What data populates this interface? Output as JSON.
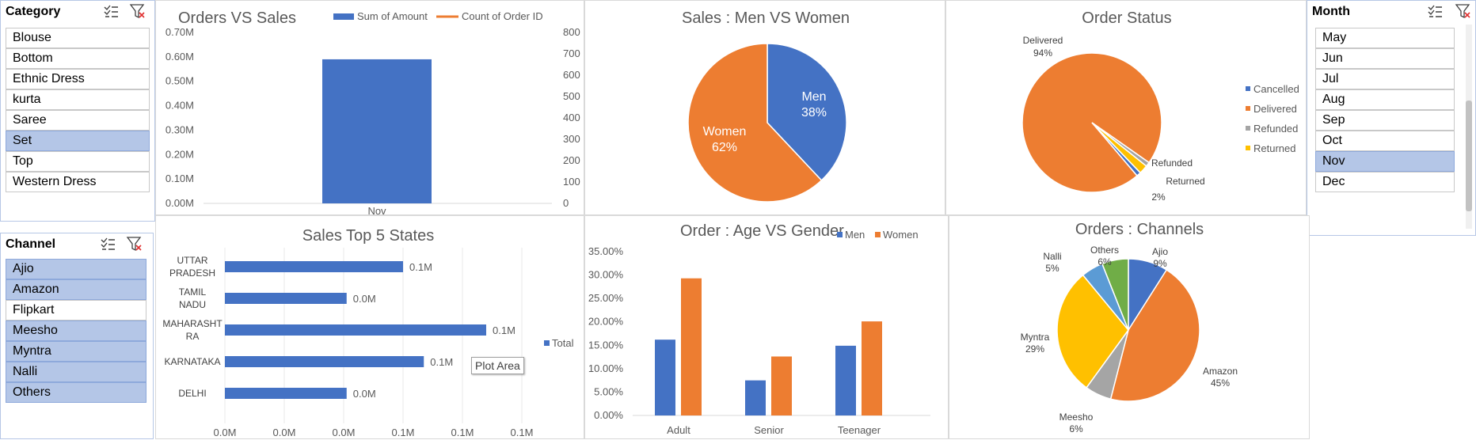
{
  "colors": {
    "blue": "#4472c4",
    "orange": "#ed7d31",
    "gray": "#a5a5a5",
    "yellow": "#ffc000",
    "lightblue": "#5b9bd5",
    "green": "#70ad47",
    "selected": "#b4c6e7"
  },
  "slicers": {
    "category": {
      "title": "Category",
      "items": [
        {
          "label": "Blouse",
          "selected": false
        },
        {
          "label": "Bottom",
          "selected": false
        },
        {
          "label": "Ethnic Dress",
          "selected": false
        },
        {
          "label": "kurta",
          "selected": false
        },
        {
          "label": "Saree",
          "selected": false
        },
        {
          "label": "Set",
          "selected": true
        },
        {
          "label": "Top",
          "selected": false
        },
        {
          "label": "Western Dress",
          "selected": false
        }
      ]
    },
    "channel": {
      "title": "Channel",
      "items": [
        {
          "label": "Ajio",
          "selected": true
        },
        {
          "label": "Amazon",
          "selected": true
        },
        {
          "label": "Flipkart",
          "selected": false
        },
        {
          "label": "Meesho",
          "selected": true
        },
        {
          "label": "Myntra",
          "selected": true
        },
        {
          "label": "Nalli",
          "selected": true
        },
        {
          "label": "Others",
          "selected": true
        }
      ]
    },
    "month": {
      "title": "Month",
      "items": [
        {
          "label": "May",
          "selected": false
        },
        {
          "label": "Jun",
          "selected": false
        },
        {
          "label": "Jul",
          "selected": false
        },
        {
          "label": "Aug",
          "selected": false
        },
        {
          "label": "Sep",
          "selected": false
        },
        {
          "label": "Oct",
          "selected": false
        },
        {
          "label": "Nov",
          "selected": true
        },
        {
          "label": "Dec",
          "selected": false
        }
      ]
    }
  },
  "tooltip": "Plot Area",
  "chart_data": [
    {
      "id": "orders_vs_sales",
      "type": "bar",
      "title": "Orders VS Sales",
      "categories": [
        "Nov"
      ],
      "series": [
        {
          "name": "Sum of Amount",
          "values": [
            0.59
          ]
        },
        {
          "name": "Count of Order ID",
          "values": [
            0
          ]
        }
      ],
      "left_ticks": [
        "0.00M",
        "0.10M",
        "0.20M",
        "0.30M",
        "0.40M",
        "0.50M",
        "0.60M",
        "0.70M"
      ],
      "right_ticks": [
        "0",
        "100",
        "200",
        "300",
        "400",
        "500",
        "600",
        "700",
        "800"
      ],
      "ylim": [
        0,
        0.7
      ],
      "legend": "top"
    },
    {
      "id": "men_vs_women",
      "type": "pie",
      "title": "Sales : Men VS Women",
      "slices": [
        {
          "label": "Men",
          "percent": "38%",
          "value": 38
        },
        {
          "label": "Women",
          "percent": "62%",
          "value": 62
        }
      ]
    },
    {
      "id": "order_status",
      "type": "pie",
      "title": "Order Status",
      "slices": [
        {
          "label": "Cancelled",
          "value": 1
        },
        {
          "label": "Delivered",
          "value": 94,
          "percent": "94%"
        },
        {
          "label": "Refunded",
          "value": 1
        },
        {
          "label": "Returned",
          "value": 2,
          "percent": "2%"
        }
      ],
      "legend": "right"
    },
    {
      "id": "top5_states",
      "type": "bar",
      "orientation": "horizontal",
      "title": "Sales Top 5 States",
      "categories": [
        "UTTAR PRADESH",
        "TAMIL NADU",
        "MAHARASHT RA",
        "KARNATAKA",
        "DELHI"
      ],
      "series": [
        {
          "name": "Total",
          "values": [
            0.06,
            0.041,
            0.088,
            0.067,
            0.041
          ]
        }
      ],
      "data_labels": [
        "0.1M",
        "0.0M",
        "0.1M",
        "0.1M",
        "0.0M"
      ],
      "x_ticks": [
        "0.0M",
        "0.0M",
        "0.0M",
        "0.1M",
        "0.1M",
        "0.1M"
      ],
      "xlim": [
        0,
        0.1
      ],
      "legend": "right"
    },
    {
      "id": "age_vs_gender",
      "type": "bar",
      "title": "Order : Age VS Gender",
      "categories": [
        "Adult",
        "Senior",
        "Teenager"
      ],
      "series": [
        {
          "name": "Men",
          "values": [
            16.2,
            7.5,
            14.9
          ]
        },
        {
          "name": "Women",
          "values": [
            29.3,
            12.6,
            20.1
          ]
        }
      ],
      "y_ticks": [
        "0.00%",
        "5.00%",
        "10.00%",
        "15.00%",
        "20.00%",
        "25.00%",
        "30.00%",
        "35.00%"
      ],
      "ylim": [
        0,
        35
      ],
      "legend": "top-right"
    },
    {
      "id": "channels",
      "type": "pie",
      "title": "Orders : Channels",
      "slices": [
        {
          "label": "Ajio",
          "percent": "9%",
          "value": 9
        },
        {
          "label": "Amazon",
          "percent": "45%",
          "value": 45
        },
        {
          "label": "Meesho",
          "percent": "6%",
          "value": 6
        },
        {
          "label": "Myntra",
          "percent": "29%",
          "value": 29
        },
        {
          "label": "Nalli",
          "percent": "5%",
          "value": 5
        },
        {
          "label": "Others",
          "percent": "6%",
          "value": 6
        }
      ]
    }
  ]
}
